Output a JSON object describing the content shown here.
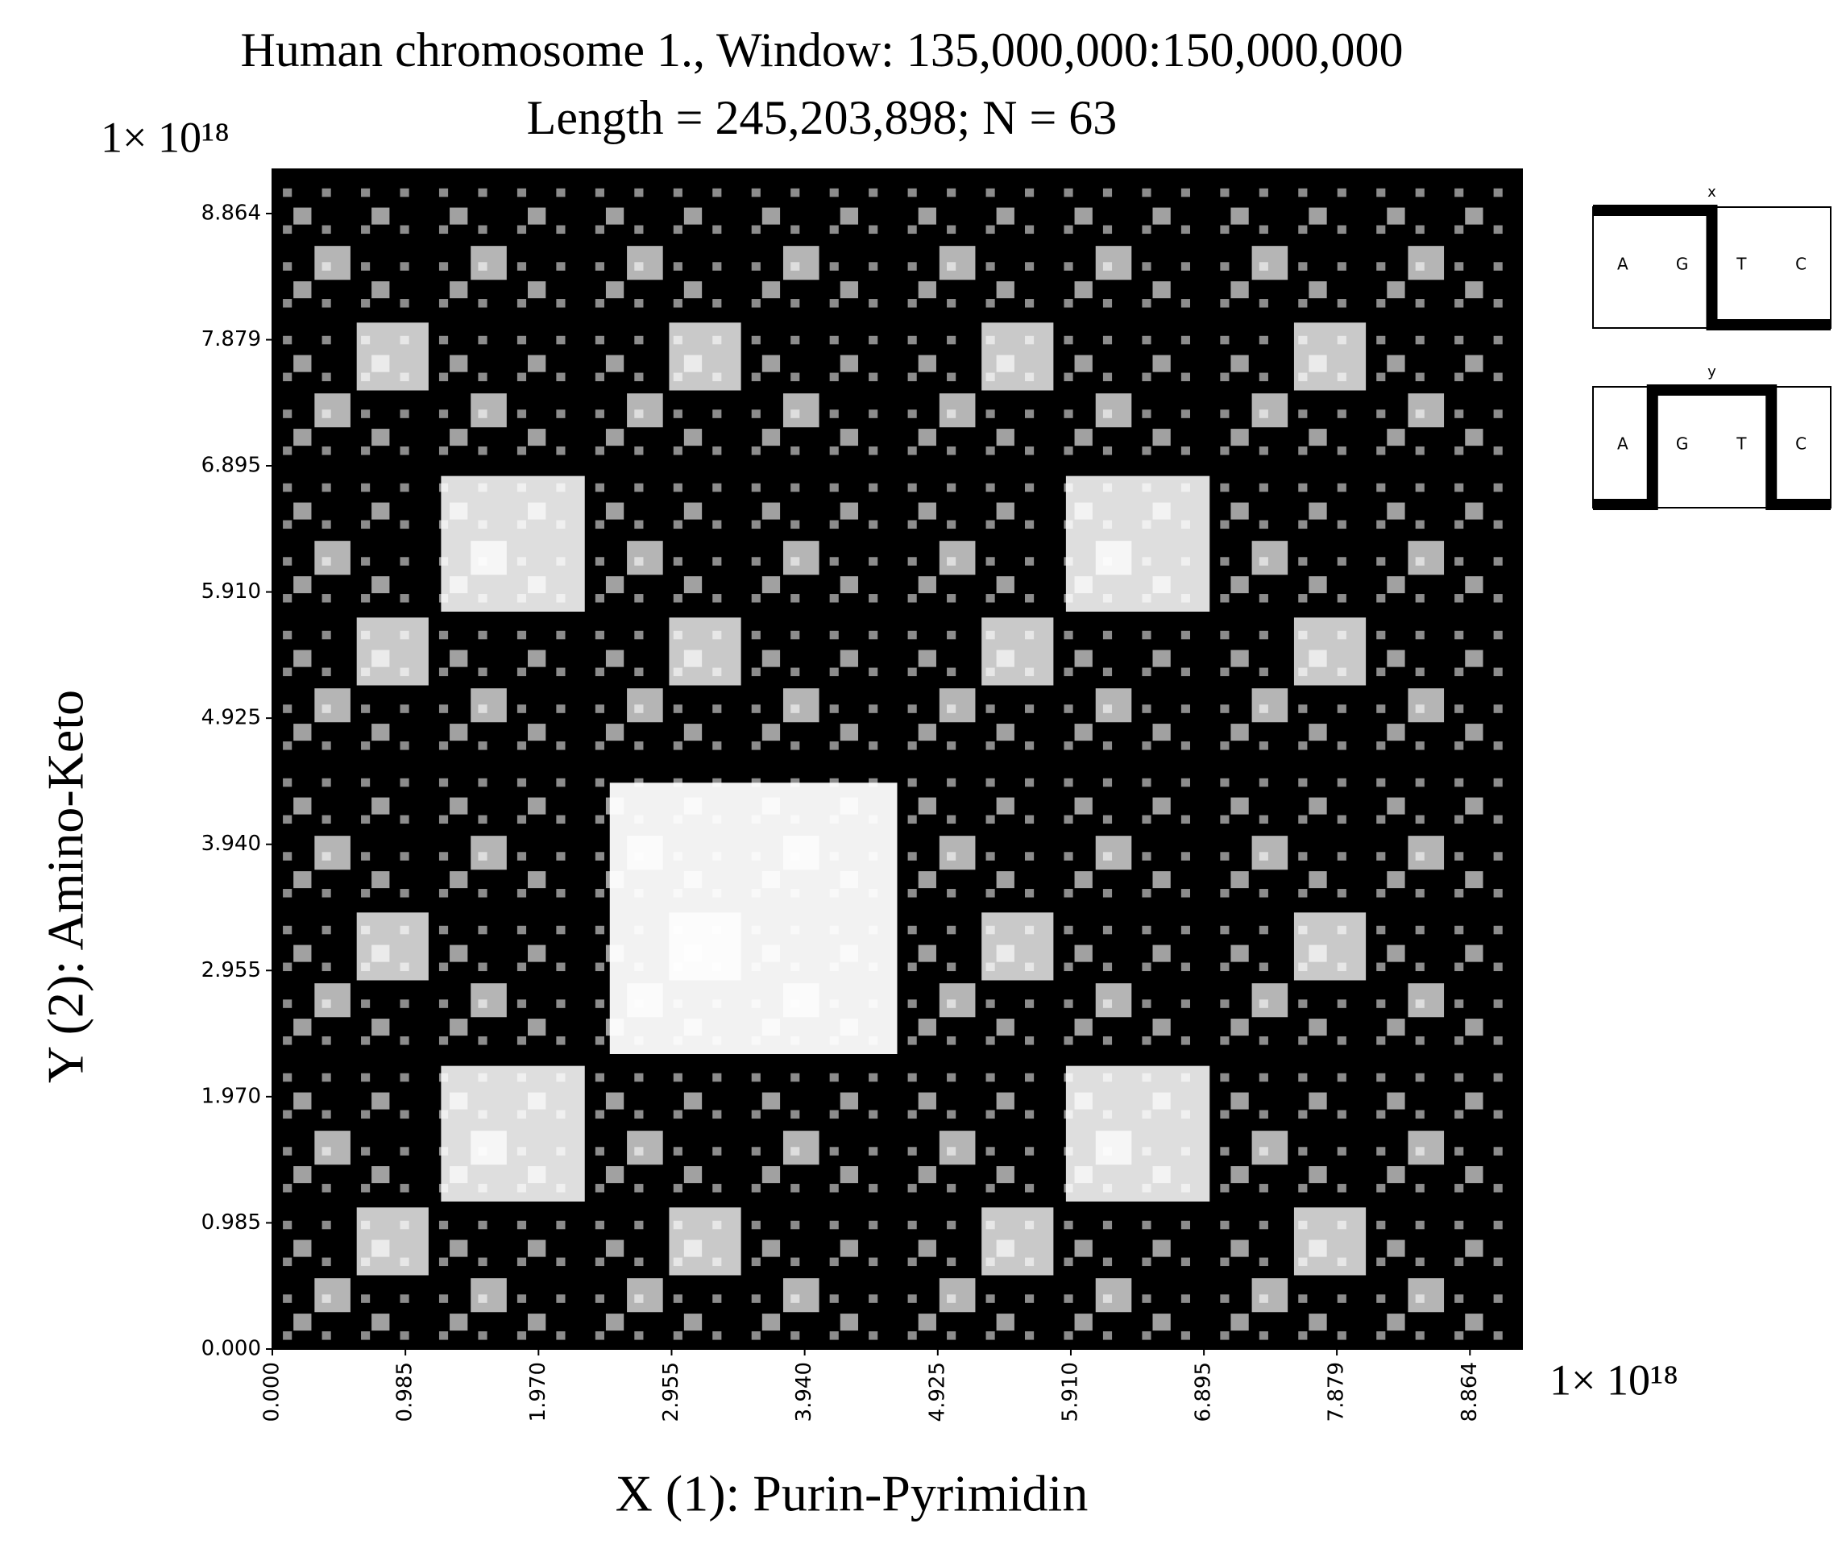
{
  "chart_data": {
    "type": "scatter",
    "title": "Human chromosome 1., Window: 135,000,000:150,000,000",
    "subtitle": "Length = 245,203,898; N = 63",
    "xlabel": "X (1): Purin-Pyrimidin",
    "ylabel": "Y (2): Amino-Keto",
    "x_offset_text": "1× 10¹⁸",
    "y_offset_text": "1× 10¹⁸",
    "xlim": [
      0,
      9.25
    ],
    "ylim": [
      0,
      9.21
    ],
    "xticks": [
      {
        "value": 0,
        "label": "0.000"
      },
      {
        "value": 0.985,
        "label": "0.985"
      },
      {
        "value": 1.97,
        "label": "1.970"
      },
      {
        "value": 2.955,
        "label": "2.955"
      },
      {
        "value": 3.94,
        "label": "3.940"
      },
      {
        "value": 4.925,
        "label": "4.925"
      },
      {
        "value": 5.91,
        "label": "5.910"
      },
      {
        "value": 6.895,
        "label": "6.895"
      },
      {
        "value": 7.879,
        "label": "7.879"
      },
      {
        "value": 8.864,
        "label": "8.864"
      }
    ],
    "yticks": [
      {
        "value": 0,
        "label": "0.000"
      },
      {
        "value": 0.985,
        "label": "0.985"
      },
      {
        "value": 1.97,
        "label": "1.970"
      },
      {
        "value": 2.955,
        "label": "2.955"
      },
      {
        "value": 3.94,
        "label": "3.940"
      },
      {
        "value": 4.925,
        "label": "4.925"
      },
      {
        "value": 5.91,
        "label": "5.910"
      },
      {
        "value": 6.895,
        "label": "6.895"
      },
      {
        "value": 7.879,
        "label": "7.879"
      },
      {
        "value": 8.864,
        "label": "8.864"
      }
    ],
    "insets": [
      {
        "title": "x",
        "labels": [
          "A",
          "G",
          "T",
          "C"
        ]
      },
      {
        "title": "y",
        "labels": [
          "A",
          "G",
          "T",
          "C"
        ]
      }
    ]
  }
}
